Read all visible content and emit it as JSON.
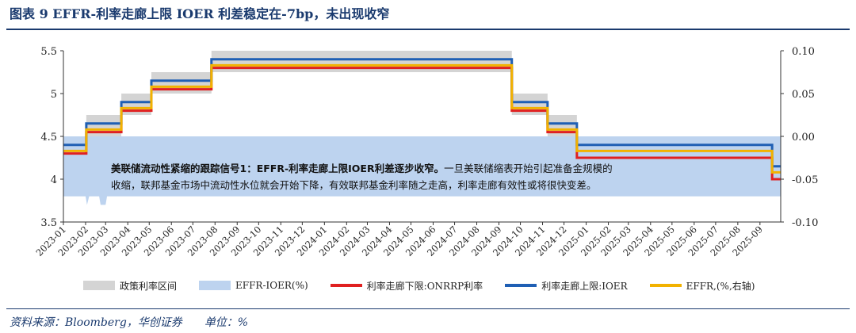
{
  "figure": {
    "title": "图表 9 EFFR-利率走廊上限 IOER 利差稳定在-7bp，未出现收窄",
    "source_label": "资料来源：Bloomberg，华创证券",
    "unit_label": "单位：%"
  },
  "annotation": {
    "highlight": "美联储流动性紧缩的跟踪信号1：EFFR-利率走廊上限IOER利差逐步收窄。",
    "body": "一旦美联储缩表开始引起准备金规模的收缩，联邦基金市场中流动性水位就会开始下降，有效联邦基金利率随之走高，利率走廊有效性或将很快变差。"
  },
  "chart_data": {
    "type": "line",
    "title": "",
    "xlabel": "",
    "ylabel": "",
    "x_range": [
      "2023-01-01",
      "2025-09-30"
    ],
    "x_ticks": [
      "2023-01",
      "2023-02",
      "2023-03",
      "2023-04",
      "2023-05",
      "2023-06",
      "2023-07",
      "2023-08",
      "2023-09",
      "2023-10",
      "2023-11",
      "2023-12",
      "2024-01",
      "2024-02",
      "2024-03",
      "2024-04",
      "2024-05",
      "2024-06",
      "2024-07",
      "2024-08",
      "2024-09",
      "2024-10",
      "2024-11",
      "2024-12",
      "2025-01",
      "2025-02",
      "2025-03",
      "2025-04",
      "2025-05",
      "2025-06",
      "2025-07",
      "2025-08",
      "2025-09"
    ],
    "y_left": {
      "ylim": [
        3.5,
        5.5
      ],
      "ticks": [
        "3.5",
        "4",
        "4.5",
        "5",
        "5.5"
      ]
    },
    "y_right": {
      "ylim": [
        -0.1,
        0.1
      ],
      "ticks": [
        "-0.10",
        "-0.05",
        "0.00",
        "0.05",
        "0.10"
      ]
    },
    "grid": false,
    "legend_position": "bottom",
    "series": [
      {
        "name": "政策利率区间",
        "kind": "band",
        "axis": "left",
        "color": "#d4d4d4",
        "points": [
          [
            "2023-01-01",
            4.25,
            4.5
          ],
          [
            "2023-02-02",
            4.5,
            4.75
          ],
          [
            "2023-03-23",
            4.75,
            5.0
          ],
          [
            "2023-05-04",
            5.0,
            5.25
          ],
          [
            "2023-07-27",
            5.25,
            5.5
          ],
          [
            "2024-09-19",
            4.75,
            5.0
          ],
          [
            "2024-11-08",
            4.5,
            4.75
          ],
          [
            "2024-12-19",
            4.25,
            4.5
          ],
          [
            "2025-09-18",
            4.0,
            4.25
          ],
          [
            "2025-09-30",
            4.0,
            4.25
          ]
        ]
      },
      {
        "name": "EFFR-IOER(%)",
        "kind": "area",
        "axis": "right",
        "color": "#bdd3ef",
        "points": [
          [
            "2023-01-01",
            -0.07
          ],
          [
            "2023-02-01",
            -0.07
          ],
          [
            "2023-02-03",
            -0.08
          ],
          [
            "2023-02-06",
            -0.07
          ],
          [
            "2023-02-20",
            -0.07
          ],
          [
            "2023-02-22",
            -0.08
          ],
          [
            "2023-03-01",
            -0.08
          ],
          [
            "2023-03-03",
            -0.07
          ],
          [
            "2025-09-30",
            -0.07
          ]
        ]
      },
      {
        "name": "利率走廊下限:ONRRP利率",
        "kind": "step",
        "axis": "left",
        "color": "#e02020",
        "points": [
          [
            "2023-01-01",
            4.3
          ],
          [
            "2023-02-02",
            4.55
          ],
          [
            "2023-03-23",
            4.8
          ],
          [
            "2023-05-04",
            5.05
          ],
          [
            "2023-07-27",
            5.3
          ],
          [
            "2024-09-19",
            4.8
          ],
          [
            "2024-11-08",
            4.55
          ],
          [
            "2024-12-19",
            4.25
          ],
          [
            "2025-09-18",
            4.0
          ],
          [
            "2025-09-30",
            4.0
          ]
        ]
      },
      {
        "name": "利率走廊上限:IOER",
        "kind": "step",
        "axis": "left",
        "color": "#1f5fb4",
        "points": [
          [
            "2023-01-01",
            4.4
          ],
          [
            "2023-02-02",
            4.65
          ],
          [
            "2023-03-23",
            4.9
          ],
          [
            "2023-05-04",
            5.15
          ],
          [
            "2023-07-27",
            5.4
          ],
          [
            "2024-09-19",
            4.9
          ],
          [
            "2024-11-08",
            4.65
          ],
          [
            "2024-12-19",
            4.4
          ],
          [
            "2025-09-18",
            4.15
          ],
          [
            "2025-09-30",
            4.15
          ]
        ]
      },
      {
        "name": "EFFR,(%,右轴)",
        "kind": "step",
        "axis": "left",
        "color": "#f2b200",
        "points": [
          [
            "2023-01-01",
            4.33
          ],
          [
            "2023-02-02",
            4.58
          ],
          [
            "2023-03-23",
            4.83
          ],
          [
            "2023-05-04",
            5.08
          ],
          [
            "2023-07-27",
            5.33
          ],
          [
            "2024-09-19",
            4.83
          ],
          [
            "2024-11-08",
            4.58
          ],
          [
            "2024-12-19",
            4.33
          ],
          [
            "2025-09-18",
            4.08
          ],
          [
            "2025-09-30",
            4.08
          ]
        ]
      }
    ]
  }
}
